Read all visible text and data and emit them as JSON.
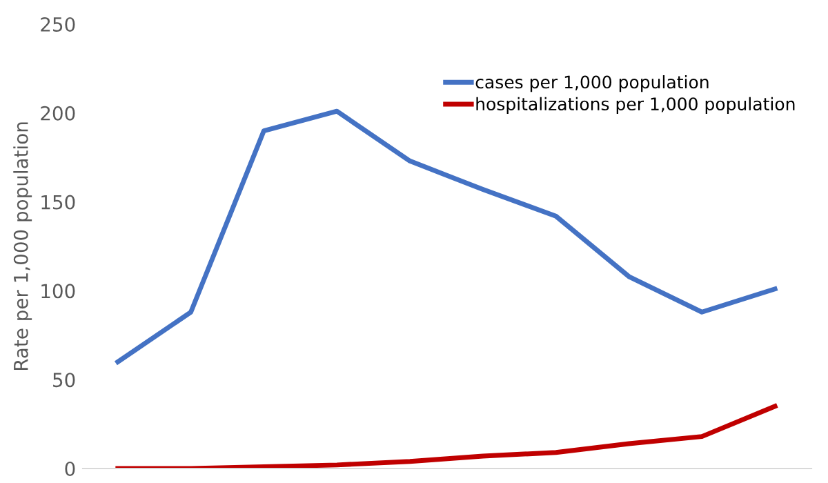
{
  "chart_data": {
    "type": "line",
    "ylabel": "Rate per 1,000 population",
    "categories": [
      null,
      null,
      null,
      null,
      null,
      null,
      null,
      null,
      null,
      null
    ],
    "series": [
      {
        "name": "cases per 1,000 population",
        "color": "#4472c4",
        "values": [
          60,
          88,
          190,
          201,
          173,
          157,
          142,
          108,
          88,
          101
        ]
      },
      {
        "name": "hospitalizations per 1,000 population",
        "color": "#c00000",
        "values": [
          0,
          0,
          1,
          2,
          4,
          7,
          9,
          14,
          18,
          35
        ]
      }
    ],
    "ylim": [
      0,
      250
    ],
    "yticks": [
      0,
      50,
      100,
      150,
      200,
      250
    ],
    "grid": false,
    "legend": "top right",
    "marker": "none",
    "line_style": "solid"
  }
}
